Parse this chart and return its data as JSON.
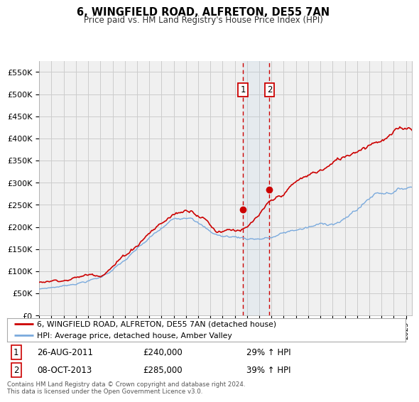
{
  "title": "6, WINGFIELD ROAD, ALFRETON, DE55 7AN",
  "subtitle": "Price paid vs. HM Land Registry's House Price Index (HPI)",
  "ylabel_ticks": [
    "£0",
    "£50K",
    "£100K",
    "£150K",
    "£200K",
    "£250K",
    "£300K",
    "£350K",
    "£400K",
    "£450K",
    "£500K",
    "£550K"
  ],
  "ytick_values": [
    0,
    50000,
    100000,
    150000,
    200000,
    250000,
    300000,
    350000,
    400000,
    450000,
    500000,
    550000
  ],
  "ylim": [
    0,
    575000
  ],
  "background_color": "#ffffff",
  "grid_color": "#cccccc",
  "plot_bg": "#f0f0f0",
  "legend_entry1": "6, WINGFIELD ROAD, ALFRETON, DE55 7AN (detached house)",
  "legend_entry2": "HPI: Average price, detached house, Amber Valley",
  "sale1_date": "26-AUG-2011",
  "sale1_price": 240000,
  "sale1_label": "1",
  "sale1_hpi": "29% ↑ HPI",
  "sale2_date": "08-OCT-2013",
  "sale2_price": 285000,
  "sale2_label": "2",
  "sale2_hpi": "39% ↑ HPI",
  "footer": "Contains HM Land Registry data © Crown copyright and database right 2024.\nThis data is licensed under the Open Government Licence v3.0.",
  "line1_color": "#cc0000",
  "line2_color": "#7aaadd",
  "xstart_year": 1995,
  "xend_year": 2025
}
